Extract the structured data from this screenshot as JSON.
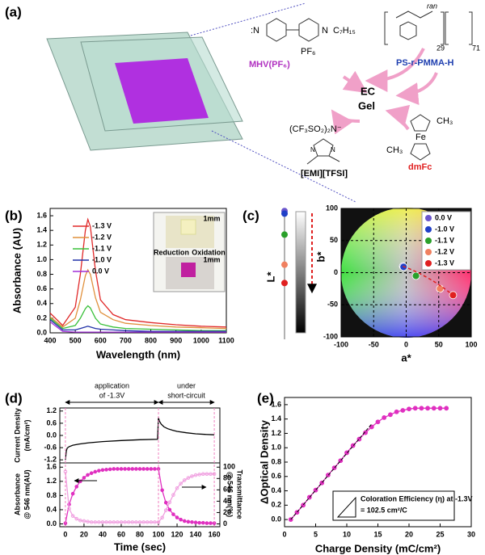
{
  "panel_labels": [
    "(a)",
    "(b)",
    "(c)",
    "(d)",
    "(e)"
  ],
  "diagram": {
    "mhv": "MHV(PF₆)",
    "pmma": "PS-r-PMMA-H",
    "ec": "EC",
    "gel": "Gel",
    "anion": "(CF₃SO₂)₂N⁻",
    "emi": "[EMI][TFSI]",
    "dmfc": "dmFc",
    "n1": ":N",
    "n2": "N",
    "c7": "C₇H₁₅",
    "pf6": "PF₆",
    "ran": "ran",
    "n29": "29",
    "n71": "71",
    "fe": "Fe",
    "ch3a": "CH₃",
    "ch3b": "CH₃",
    "n3": "N",
    "n4": "N"
  },
  "chart_data": [
    {
      "type": "line",
      "xlabel": "Wavelength (nm)",
      "ylabel": "Absorbance (AU)",
      "x": [
        400,
        450,
        500,
        520,
        540,
        550,
        560,
        580,
        600,
        650,
        700,
        800,
        900,
        1000,
        1100
      ],
      "series": [
        {
          "name": "-1.3 V",
          "color": "#e02828",
          "values": [
            0.27,
            0.1,
            0.35,
            0.8,
            1.4,
            1.55,
            1.45,
            0.85,
            0.45,
            0.25,
            0.18,
            0.14,
            0.11,
            0.09,
            0.08
          ]
        },
        {
          "name": "-1.2 V",
          "color": "#e0903c",
          "values": [
            0.22,
            0.08,
            0.2,
            0.45,
            0.78,
            0.86,
            0.8,
            0.48,
            0.28,
            0.18,
            0.13,
            0.1,
            0.08,
            0.07,
            0.06
          ]
        },
        {
          "name": "-1.1 V",
          "color": "#38c038",
          "values": [
            0.2,
            0.06,
            0.1,
            0.2,
            0.33,
            0.37,
            0.34,
            0.2,
            0.12,
            0.08,
            0.06,
            0.05,
            0.04,
            0.03,
            0.03
          ]
        },
        {
          "name": "-1.0 V",
          "color": "#2030a8",
          "values": [
            0.18,
            0.04,
            0.04,
            0.06,
            0.08,
            0.09,
            0.08,
            0.06,
            0.05,
            0.04,
            0.03,
            0.02,
            0.02,
            0.02,
            0.02
          ]
        },
        {
          "name": "0.0 V",
          "color": "#a030d8",
          "values": [
            0.15,
            0.02,
            0.01,
            0.01,
            0.01,
            0.01,
            0.01,
            0.01,
            0.01,
            0.01,
            0.01,
            0.01,
            0.01,
            0.01,
            0.01
          ]
        }
      ],
      "xlim": [
        400,
        1100
      ],
      "xticks": [
        400,
        500,
        600,
        700,
        800,
        900,
        1000,
        1100
      ],
      "ylim": [
        0,
        1.7
      ],
      "yticks": [
        {
          "value": 0,
          "label": "0.0"
        },
        0.2,
        0.4,
        0.6,
        0.8,
        {
          "value": 1,
          "label": "1.0"
        },
        1.2,
        1.4,
        1.6
      ],
      "annotations": [
        "1mm",
        "Reduction",
        "Oxidation",
        "1mm"
      ]
    },
    {
      "type": "dot",
      "ylabel": "L*",
      "ylim": [
        0,
        100
      ],
      "values": [
        98,
        96,
        80,
        57,
        43
      ],
      "colors": [
        "#6a55cc",
        "#2040c8",
        "#2aa02a",
        "#f08060",
        "#e02020"
      ]
    },
    {
      "type": "scatter",
      "xlabel": "a*",
      "ylabel": "b*",
      "xlim": [
        -100,
        100
      ],
      "ylim": [
        -100,
        100
      ],
      "xticks": [
        -100,
        -50,
        0,
        50,
        100
      ],
      "yticks": [
        -100,
        -50,
        0,
        50,
        100
      ],
      "grid": true,
      "series": [
        {
          "name": "0.0 V",
          "color": "#6a55cc",
          "x": [
            -5
          ],
          "values": [
            10
          ]
        },
        {
          "name": "-1.0 V",
          "color": "#2040c8",
          "x": [
            -4
          ],
          "values": [
            9
          ]
        },
        {
          "name": "-1.1 V",
          "color": "#2aa02a",
          "x": [
            15
          ],
          "values": [
            -5
          ]
        },
        {
          "name": "-1.2 V",
          "color": "#f08060",
          "x": [
            52
          ],
          "values": [
            -25
          ]
        },
        {
          "name": "-1.3 V",
          "color": "#e02020",
          "x": [
            72
          ],
          "values": [
            -35
          ]
        }
      ]
    },
    {
      "type": "line",
      "ylabel": [
        "Current Density",
        "(mA/cm²)"
      ],
      "annotations": [
        "application",
        "of -1.3V",
        "under",
        "short-circuit"
      ],
      "x": [
        0,
        1,
        2,
        4,
        8,
        15,
        25,
        40,
        60,
        80,
        99,
        100,
        101,
        103,
        106,
        110,
        115,
        120,
        130,
        140,
        150,
        160
      ],
      "series": [
        {
          "name": "Current",
          "color": "#000",
          "values": [
            -1.2,
            -0.75,
            -0.62,
            -0.55,
            -0.48,
            -0.42,
            -0.36,
            -0.3,
            -0.25,
            -0.21,
            -0.19,
            0.88,
            0.7,
            0.55,
            0.42,
            0.33,
            0.26,
            0.2,
            0.13,
            0.08,
            0.05,
            0.03
          ]
        }
      ],
      "xlim": [
        -6,
        166
      ],
      "ylim": [
        -1.35,
        1.35
      ],
      "yticks": [
        -1.2,
        -0.6,
        {
          "value": 0,
          "label": "0.0"
        },
        0.6,
        1.2
      ]
    },
    {
      "type": "line",
      "xlabel": "Time (sec)",
      "ylabel": [
        "Absorbance",
        "@ 546 nm(AU)"
      ],
      "y2label": [
        "Transmittance",
        "@ 546 nm(%)"
      ],
      "x": [
        0,
        4,
        8,
        12,
        16,
        20,
        24,
        28,
        32,
        36,
        40,
        44,
        48,
        52,
        56,
        60,
        64,
        68,
        72,
        76,
        80,
        84,
        88,
        92,
        96,
        100,
        104,
        108,
        112,
        116,
        120,
        124,
        128,
        132,
        136,
        140,
        144,
        148,
        152,
        156,
        160
      ],
      "series": [
        {
          "name": "Absorbance",
          "color": "#e030c0",
          "marker": "filled",
          "values": [
            0.02,
            0.55,
            0.85,
            1.05,
            1.2,
            1.3,
            1.38,
            1.43,
            1.47,
            1.5,
            1.52,
            1.53,
            1.54,
            1.55,
            1.55,
            1.55,
            1.55,
            1.55,
            1.55,
            1.55,
            1.55,
            1.55,
            1.55,
            1.55,
            1.55,
            1.55,
            0.95,
            0.6,
            0.4,
            0.27,
            0.18,
            0.12,
            0.08,
            0.06,
            0.05,
            0.04,
            0.03,
            0.03,
            0.02,
            0.02,
            0.02
          ]
        },
        {
          "name": "Transmittance",
          "color": "#f0a0e0",
          "marker": "open",
          "axis": "y2",
          "values": [
            92,
            27,
            14,
            9,
            6,
            5,
            4,
            3,
            3,
            3,
            3,
            3,
            3,
            3,
            3,
            3,
            3,
            3,
            3,
            3,
            3,
            3,
            3,
            3,
            3,
            3,
            11,
            24,
            38,
            51,
            63,
            71,
            77,
            81,
            84,
            86,
            87,
            88,
            88,
            88,
            88
          ]
        }
      ],
      "xlim": [
        -6,
        166
      ],
      "xticks": [
        0,
        20,
        40,
        60,
        80,
        100,
        120,
        140,
        160
      ],
      "ylim": [
        -0.08,
        1.72
      ],
      "yticks": [
        {
          "value": 0,
          "label": "0.0"
        },
        0.4,
        0.8,
        1.2,
        1.6
      ],
      "y2lim": [
        -5,
        107.5
      ],
      "y2ticks": [
        0,
        20,
        40,
        60,
        80,
        100
      ]
    },
    {
      "type": "line",
      "xlabel": "Charge Density (mC/cm²)",
      "ylabel": "ΔOptical Density",
      "annotations": [
        "Coloration Efficiency (η) at -1.3V",
        "= 102.5 cm²/C"
      ],
      "x": [
        1,
        2,
        3,
        4,
        5,
        6,
        7,
        8,
        9,
        10,
        11,
        12,
        13,
        14,
        15,
        16,
        17,
        18,
        19,
        20,
        21,
        22,
        23,
        24,
        25,
        26
      ],
      "series": [
        {
          "name": "ΔOD",
          "color": "#e030c0",
          "marker": "filled",
          "values": [
            0,
            0.1,
            0.2,
            0.31,
            0.41,
            0.51,
            0.62,
            0.72,
            0.82,
            0.93,
            1.03,
            1.12,
            1.21,
            1.29,
            1.36,
            1.42,
            1.46,
            1.5,
            1.52,
            1.54,
            1.55,
            1.55,
            1.55,
            1.55,
            1.55,
            1.55
          ]
        }
      ],
      "fit": {
        "x": [
          1,
          14
        ],
        "values": [
          0,
          1.33
        ]
      },
      "xlim": [
        0,
        30
      ],
      "xticks": [
        0,
        5,
        10,
        15,
        20,
        25,
        30
      ],
      "ylim": [
        -0.1,
        1.7
      ],
      "yticks": [
        {
          "value": 0,
          "label": "0.0"
        },
        0.2,
        0.4,
        0.6,
        0.8,
        {
          "value": 1,
          "label": "1.0"
        },
        1.2,
        1.4,
        1.6
      ]
    }
  ]
}
